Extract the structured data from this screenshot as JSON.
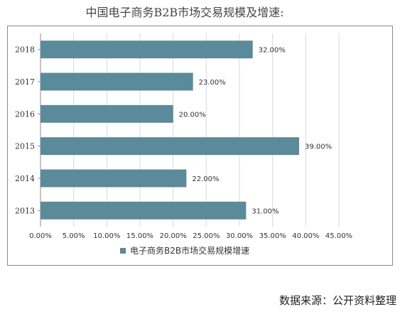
{
  "title": "中国电子商务B2B市场交易规模及增速:",
  "source": "数据来源：公开资料整理",
  "chart_data": {
    "type": "bar",
    "orientation": "horizontal",
    "categories": [
      "2018",
      "2017",
      "2016",
      "2015",
      "2014",
      "2013"
    ],
    "series": [
      {
        "name": "电子商务B2B市场交易规模增速",
        "values": [
          32.0,
          23.0,
          20.0,
          39.0,
          22.0,
          31.0
        ],
        "value_labels": [
          "32.00%",
          "23.00%",
          "20.00%",
          "39.00%",
          "22.00%",
          "31.00%"
        ]
      }
    ],
    "xlim": [
      0,
      45
    ],
    "x_ticks": [
      0,
      5,
      10,
      15,
      20,
      25,
      30,
      35,
      40,
      45
    ],
    "x_tick_labels": [
      "0.00%",
      "5.00%",
      "10.00%",
      "15.00%",
      "20.00%",
      "25.00%",
      "30.00%",
      "35.00%",
      "40.00%",
      "45.00%"
    ],
    "grid": true,
    "legend": "bottom",
    "colors": {
      "bar": "#5b8a9a",
      "grid": "#d9d9d9",
      "axis": "#8c8c8c"
    }
  }
}
